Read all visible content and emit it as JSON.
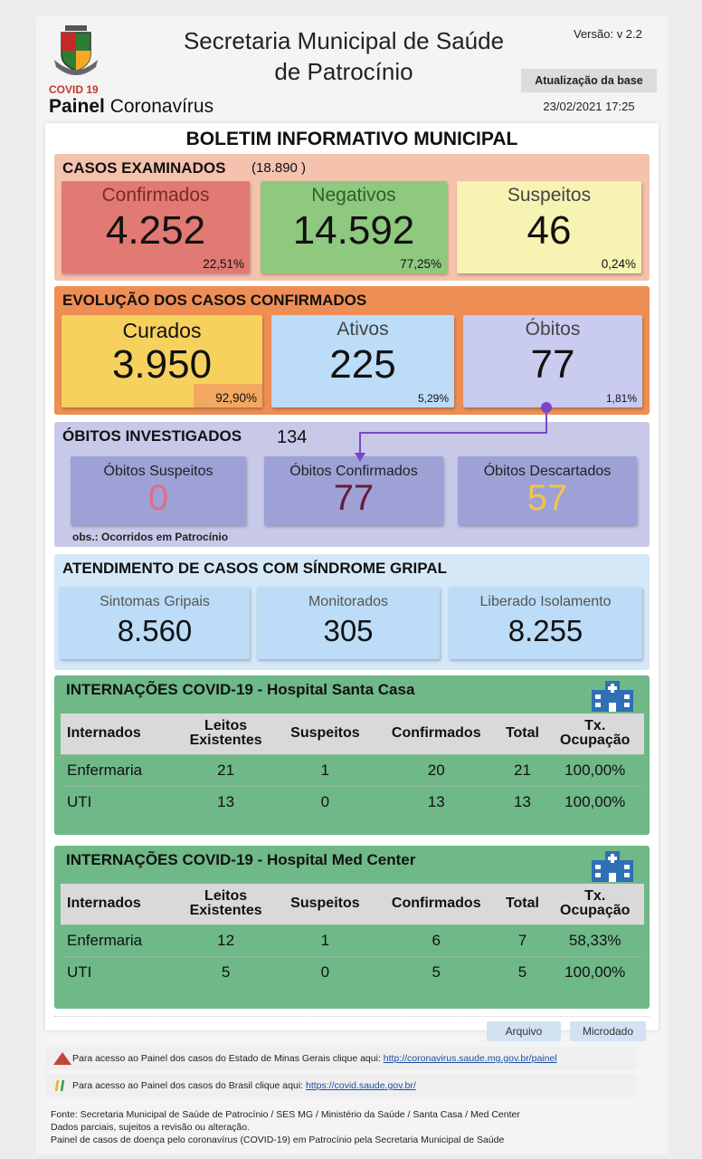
{
  "header": {
    "covid_tag": "COVID 19",
    "painel_bold": "Painel",
    "painel_rest": " Coronavírus",
    "title_line1": "Secretaria Municipal de Saúde",
    "title_line2": "de Patrocínio",
    "versao": "Versão: v 2.2",
    "atualizacao_label": "Atualização da base",
    "atualizacao_date": "23/02/2021 17:25"
  },
  "boletim_title": "BOLETIM INFORMATIVO MUNICIPAL",
  "casos": {
    "title": "CASOS EXAMINADOS",
    "total": "(18.890 )",
    "confirmados": {
      "label": "Confirmados",
      "value": "4.252",
      "pct": "22,51%"
    },
    "negativos": {
      "label": "Negativos",
      "value": "14.592",
      "pct": "77,25%"
    },
    "suspeitos": {
      "label": "Suspeitos",
      "value": "46",
      "pct": "0,24%"
    }
  },
  "evolucao": {
    "title": "EVOLUÇÃO DOS CASOS CONFIRMADOS",
    "curados": {
      "label": "Curados",
      "value": "3.950",
      "pct": "92,90%"
    },
    "ativos": {
      "label": "Ativos",
      "value": "225",
      "pct": "5,29%"
    },
    "obitos": {
      "label": "Óbitos",
      "value": "77",
      "pct": "1,81%"
    }
  },
  "obitos_inv": {
    "title": "ÓBITOS INVESTIGADOS",
    "total": "134",
    "suspeitos": {
      "label": "Óbitos Suspeitos",
      "value": "0"
    },
    "confirmados": {
      "label": "Óbitos Confirmados",
      "value": "77"
    },
    "descartados": {
      "label": "Óbitos Descartados",
      "value": "57"
    },
    "obs": "obs.: Ocorridos em Patrocínio"
  },
  "sindrome": {
    "title": "ATENDIMENTO DE CASOS COM SÍNDROME GRIPAL",
    "sintomas": {
      "label": "Sintomas Gripais",
      "value": "8.560"
    },
    "monitorados": {
      "label": "Monitorados",
      "value": "305"
    },
    "liberado": {
      "label": "Liberado Isolamento",
      "value": "8.255"
    }
  },
  "hosp1": {
    "title": "INTERNAÇÕES COVID-19 - Hospital Santa Casa",
    "headers": [
      "Internados",
      "Leitos\nExistentes",
      "Suspeitos",
      "Confirmados",
      "Total",
      "Tx.\nOcupação"
    ],
    "rows": [
      [
        "Enfermaria",
        "21",
        "1",
        "20",
        "21",
        "100,00%"
      ],
      [
        "UTI",
        "13",
        "0",
        "13",
        "13",
        "100,00%"
      ]
    ]
  },
  "hosp2": {
    "title": "INTERNAÇÕES COVID-19 - Hospital Med Center",
    "headers": [
      "Internados",
      "Leitos\nExistentes",
      "Suspeitos",
      "Confirmados",
      "Total",
      "Tx.\nOcupação"
    ],
    "rows": [
      [
        "Enfermaria",
        "12",
        "1",
        "6",
        "7",
        "58,33%"
      ],
      [
        "UTI",
        "5",
        "0",
        "5",
        "5",
        "100,00%"
      ]
    ]
  },
  "buttons": {
    "arquivo": "Arquivo",
    "microdado": "Microdado"
  },
  "links": {
    "mg_text": "Para acesso ao Painel dos casos do Estado de Minas Gerais clique aqui: ",
    "mg_url": "http://coronavirus.saude.mg.gov.br/painel",
    "br_text": "Para acesso ao Painel dos casos do Brasil clique aqui: ",
    "br_url": "https://covid.saude.gov.br/"
  },
  "footer": {
    "line1": "Fonte: Secretaria Municipal de Saúde de Patrocínio / SES MG / Ministério da Saúde / Santa Casa / Med Center",
    "line2": "Dados parciais, sujeitos a revisão ou alteração.",
    "line3": "Painel de casos de doença pelo coronavírus (COVID-19) em Patrocínio pela Secretaria Municipal de Saúde"
  },
  "colors": {
    "casos_bg": "#f5c2ae",
    "confirmados": "#e07a73",
    "negativos": "#8ec97f",
    "suspeitos": "#f6f3b3",
    "evolucao_bg": "#ee8e55",
    "curados": "#f7d15e",
    "ativos": "#bcdcf8",
    "obitos": "#c9cbef",
    "obitos_inv_bg": "#c8c9e9",
    "sindrome_bg": "#d5e8f8",
    "hosp_bg": "#6fb888"
  }
}
